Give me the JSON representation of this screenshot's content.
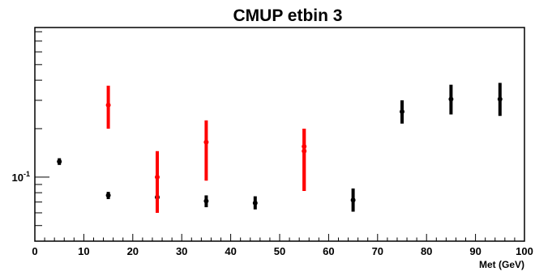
{
  "chart_data": {
    "type": "scatter",
    "title": "CMUP etbin 3",
    "xlabel": "Met (GeV)",
    "ylabel": "",
    "xlim": [
      0,
      100
    ],
    "y_scale": "log",
    "ylim": [
      0.04,
      0.85
    ],
    "x_tick_labels": [
      "0",
      "10",
      "20",
      "30",
      "40",
      "50",
      "60",
      "70",
      "80",
      "90",
      "100"
    ],
    "y_tick_labels": [
      {
        "base": "10",
        "exp": "-1",
        "value": 0.1
      }
    ],
    "error_bars": true,
    "series": [
      {
        "color": "#000000",
        "points": [
          {
            "x": 5,
            "y": 0.125,
            "lo": 0.119,
            "hi": 0.131
          },
          {
            "x": 15,
            "y": 0.077,
            "lo": 0.073,
            "hi": 0.081
          },
          {
            "x": 25,
            "y": 0.075,
            "lo": 0.069,
            "hi": 0.081
          },
          {
            "x": 35,
            "y": 0.071,
            "lo": 0.065,
            "hi": 0.077
          },
          {
            "x": 45,
            "y": 0.069,
            "lo": 0.063,
            "hi": 0.076
          },
          {
            "x": 65,
            "y": 0.072,
            "lo": 0.061,
            "hi": 0.085
          },
          {
            "x": 75,
            "y": 0.255,
            "lo": 0.215,
            "hi": 0.3
          },
          {
            "x": 85,
            "y": 0.305,
            "lo": 0.245,
            "hi": 0.375
          },
          {
            "x": 95,
            "y": 0.305,
            "lo": 0.24,
            "hi": 0.385
          }
        ]
      },
      {
        "color": "#ff0000",
        "points": [
          {
            "x": 15,
            "y": 0.28,
            "lo": 0.2,
            "hi": 0.37
          },
          {
            "x": 25,
            "y": 0.1,
            "lo": 0.06,
            "hi": 0.145
          },
          {
            "x": 35,
            "y": 0.165,
            "lo": 0.095,
            "hi": 0.225
          },
          {
            "x": 55,
            "y": 0.155,
            "lo": 0.082,
            "hi": 0.2
          },
          {
            "x": 55,
            "y": 0.145,
            "lo": 0.082,
            "hi": 0.2
          }
        ]
      }
    ]
  }
}
